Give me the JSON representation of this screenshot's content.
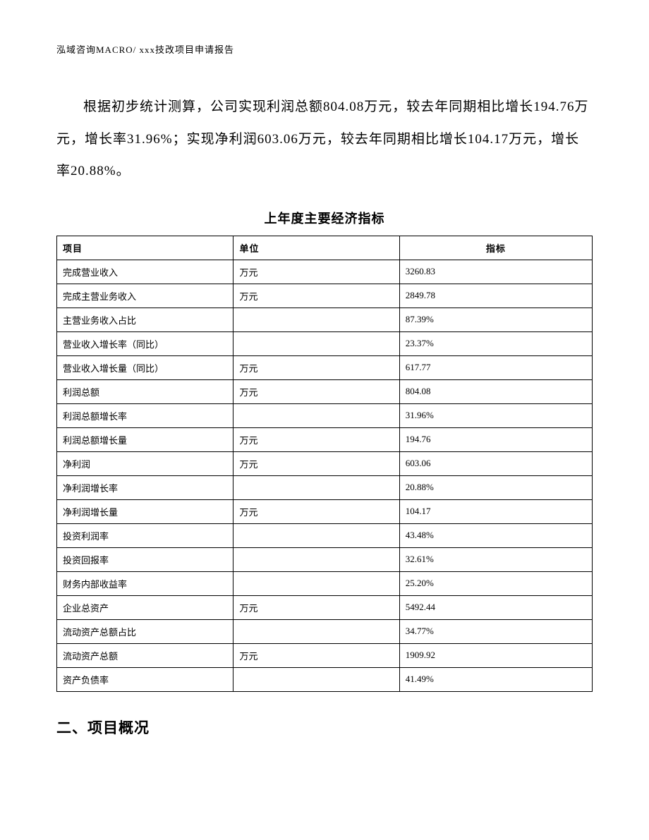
{
  "header": "泓域咨询MACRO/   xxx技改项目申请报告",
  "paragraph": "根据初步统计测算，公司实现利润总额804.08万元，较去年同期相比增长194.76万元，增长率31.96%；实现净利润603.06万元，较去年同期相比增长104.17万元，增长率20.88%。",
  "table": {
    "title": "上年度主要经济指标",
    "columns": [
      "项目",
      "单位",
      "指标"
    ],
    "rows": [
      {
        "item": "完成营业收入",
        "unit": "万元",
        "value": "3260.83"
      },
      {
        "item": "完成主营业务收入",
        "unit": "万元",
        "value": "2849.78"
      },
      {
        "item": "主营业务收入占比",
        "unit": "",
        "value": "87.39%"
      },
      {
        "item": "营业收入增长率（同比）",
        "unit": "",
        "value": "23.37%"
      },
      {
        "item": "营业收入增长量（同比）",
        "unit": "万元",
        "value": "617.77"
      },
      {
        "item": "利润总额",
        "unit": "万元",
        "value": "804.08"
      },
      {
        "item": "利润总额增长率",
        "unit": "",
        "value": "31.96%"
      },
      {
        "item": "利润总额增长量",
        "unit": "万元",
        "value": "194.76"
      },
      {
        "item": "净利润",
        "unit": "万元",
        "value": "603.06"
      },
      {
        "item": "净利润增长率",
        "unit": "",
        "value": "20.88%"
      },
      {
        "item": "净利润增长量",
        "unit": "万元",
        "value": "104.17"
      },
      {
        "item": "投资利润率",
        "unit": "",
        "value": "43.48%"
      },
      {
        "item": "投资回报率",
        "unit": "",
        "value": "32.61%"
      },
      {
        "item": "财务内部收益率",
        "unit": "",
        "value": "25.20%"
      },
      {
        "item": "企业总资产",
        "unit": "万元",
        "value": "5492.44"
      },
      {
        "item": "流动资产总额占比",
        "unit": "",
        "value": "34.77%"
      },
      {
        "item": "流动资产总额",
        "unit": "万元",
        "value": "1909.92"
      },
      {
        "item": "资产负债率",
        "unit": "",
        "value": "41.49%"
      }
    ]
  },
  "section_heading": "二、项目概况"
}
